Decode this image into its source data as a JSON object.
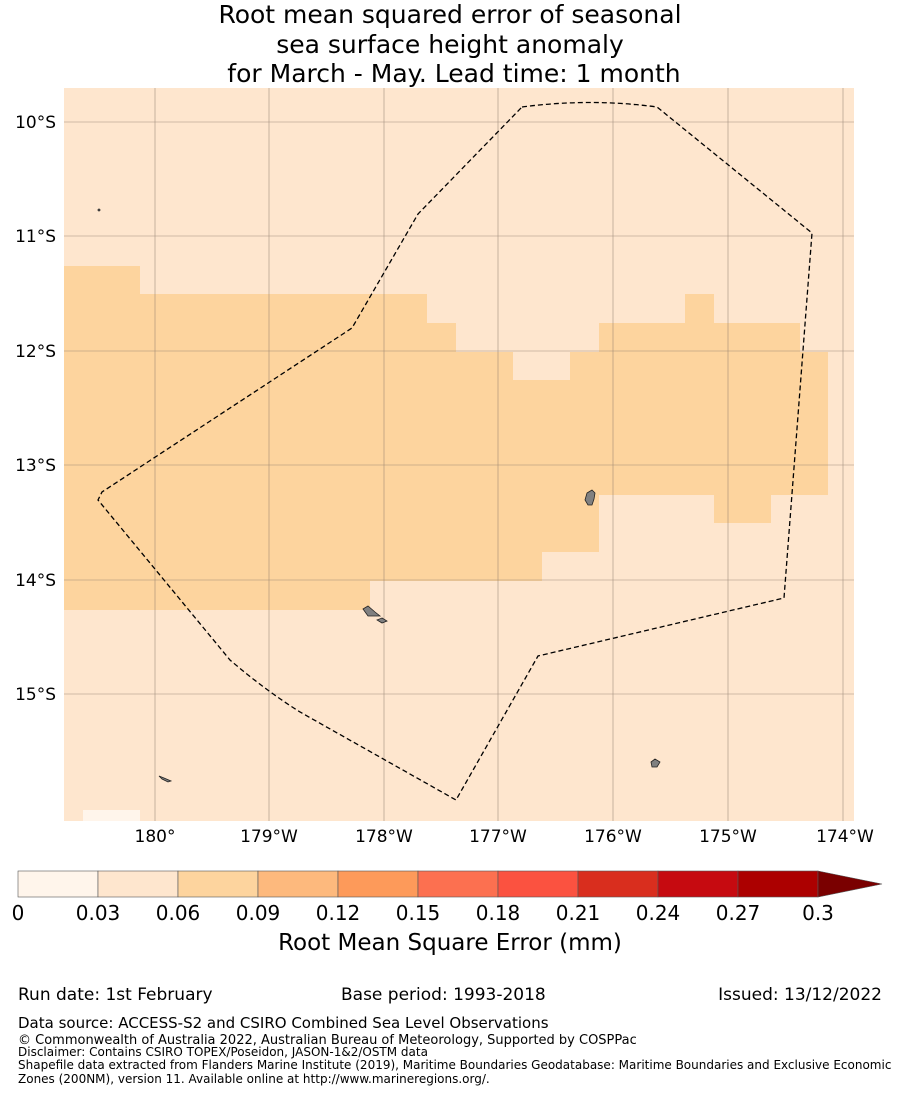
{
  "title": {
    "line1": "Root mean squared error of seasonal",
    "line2": "sea surface height anomaly",
    "line3": " for March - May. Lead time: 1 month"
  },
  "map": {
    "lat_ticks": [
      "10°S",
      "11°S",
      "12°S",
      "13°S",
      "14°S",
      "15°S"
    ],
    "lon_ticks": [
      "180°",
      "179°W",
      "178°W",
      "177°W",
      "176°W",
      "175°W",
      "174°W"
    ],
    "colors": {
      "bin_0": "#fff5eb",
      "bin_1": "#fee6ce",
      "bin_2": "#fdd49e",
      "land": "#808080",
      "grid": "#8c7b6a",
      "boundary": "#000000"
    }
  },
  "chart_data": {
    "type": "heatmap",
    "variable": "Root Mean Square Error (mm)",
    "colorbar": {
      "ticks": [
        "0",
        "0.03",
        "0.06",
        "0.09",
        "0.12",
        "0.15",
        "0.18",
        "0.21",
        "0.24",
        "0.27",
        "0.3"
      ],
      "colors": [
        "#fff5eb",
        "#fee6ce",
        "#fdd49e",
        "#fdb97d",
        "#fd9a5a",
        "#fc7050",
        "#fb5240",
        "#d92e1e",
        "#c60a10",
        "#ac0000",
        "#7a0000"
      ],
      "extend": "max"
    }
  },
  "colorbar_label": "Root Mean Square Error (mm)",
  "footer": {
    "run_date": "Run date: 1st February",
    "base_period": "Base period: 1993-2018",
    "issued": "Issued: 13/12/2022",
    "data_source": "Data source: ACCESS-S2 and CSIRO Combined Sea Level Observations",
    "copyright": "© Commonwealth of Australia 2022, Australian Bureau of Meteorology, Supported by COSPPac",
    "disclaimer": "Disclaimer: Contains CSIRO TOPEX/Poseidon, JASON-1&2/OSTM data",
    "shapefile1": "Shapefile data extracted from Flanders Marine Institute (2019), Maritime Boundaries Geodatabase: Maritime Boundaries and Exclusive Economic",
    "shapefile2": "Zones (200NM), version 11. Available online at http://www.marineregions.org/."
  }
}
